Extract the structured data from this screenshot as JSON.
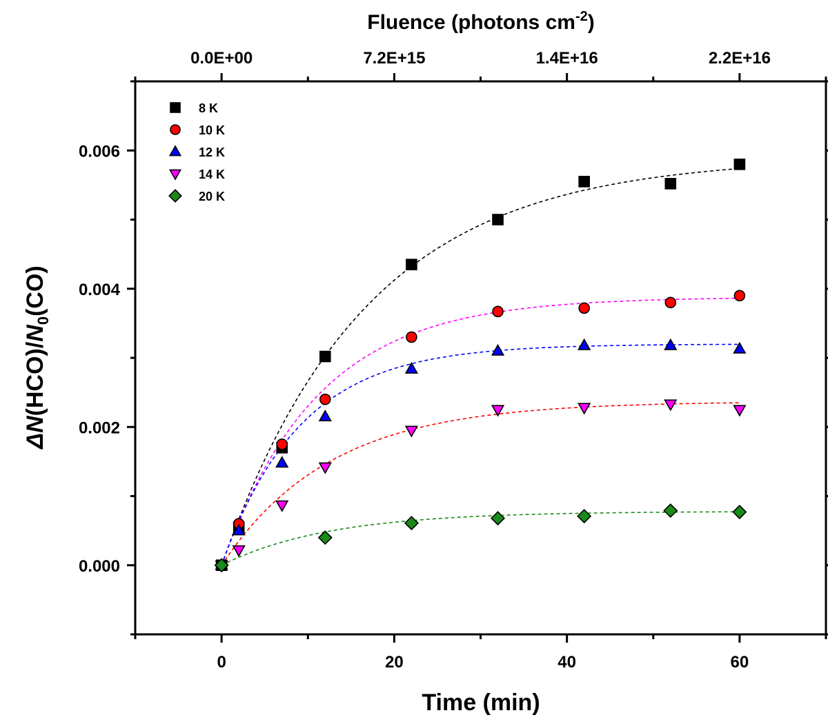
{
  "chart_data": {
    "type": "scatter",
    "xlabel": "Time (min)",
    "ylabel_parts": {
      "delta": "Δ",
      "n1": "N",
      "mid": "(HCO)/",
      "n2": "N",
      "sub": "0",
      "end": "(CO)"
    },
    "top_axis": {
      "title_main": "Fluence (photons cm",
      "title_sup": "-2",
      "title_end": ")",
      "tick_x": [
        0,
        20,
        40,
        60
      ],
      "tick_labels": [
        "0.0E+00",
        "7.2E+15",
        "1.4E+16",
        "2.2E+16"
      ]
    },
    "xlim": [
      -10,
      70
    ],
    "ylim": [
      -0.001,
      0.007
    ],
    "x_ticks": [
      0,
      20,
      40,
      60
    ],
    "x_tick_labels": [
      "0",
      "20",
      "40",
      "60"
    ],
    "y_ticks": [
      0.0,
      0.002,
      0.004,
      0.006
    ],
    "y_tick_labels": [
      "0.000",
      "0.002",
      "0.004",
      "0.006"
    ],
    "x_minor_ticks": [
      -10,
      10,
      30,
      50,
      70
    ],
    "y_minor_ticks": [
      -0.001,
      0.001,
      0.003,
      0.005,
      0.007
    ],
    "legend_position": "top-left",
    "x": [
      0,
      2,
      7,
      12,
      22,
      32,
      42,
      52,
      60
    ],
    "series": [
      {
        "name": "8 K",
        "marker": "square",
        "fill": "#000000",
        "fit_color": "#000000",
        "fit_A": 0.0059,
        "fit_k": 0.06,
        "values": [
          0.0,
          0.00055,
          0.0017,
          0.00302,
          0.00435,
          0.005,
          0.00555,
          0.00552,
          0.0058
        ]
      },
      {
        "name": "10 K",
        "marker": "circle",
        "fill": "#ff0000",
        "fit_color": "#ff00ff",
        "fit_A": 0.00388,
        "fit_k": 0.09,
        "values": [
          0.0,
          0.0006,
          0.00175,
          0.0024,
          0.0033,
          0.00367,
          0.00372,
          0.0038,
          0.0039
        ]
      },
      {
        "name": "12 K",
        "marker": "triangle-up",
        "fill": "#0000ff",
        "fit_color": "#0000ff",
        "fit_A": 0.0032,
        "fit_k": 0.11,
        "values": [
          0.0,
          0.0005,
          0.00148,
          0.00215,
          0.00284,
          0.0031,
          0.00318,
          0.00318,
          0.00313
        ]
      },
      {
        "name": "14 K",
        "marker": "triangle-down",
        "fill": "#ff00ff",
        "fit_color": "#ff0000",
        "fit_A": 0.00237,
        "fit_k": 0.08,
        "values": [
          0.0,
          0.00022,
          0.00087,
          0.00142,
          0.00195,
          0.00225,
          0.00228,
          0.00233,
          0.00225
        ]
      },
      {
        "name": "20 K",
        "marker": "diamond",
        "fill": "#1a8a1a",
        "fit_color": "#1a8a1a",
        "fit_A": 0.00078,
        "fit_k": 0.08,
        "values": [
          0.0,
          0.0,
          0.0,
          0.0004,
          0.00061,
          0.00068,
          0.00071,
          0.00079,
          0.00077
        ],
        "x_override": [
          0,
          0,
          0,
          12,
          22,
          32,
          42,
          52,
          60
        ]
      }
    ]
  }
}
